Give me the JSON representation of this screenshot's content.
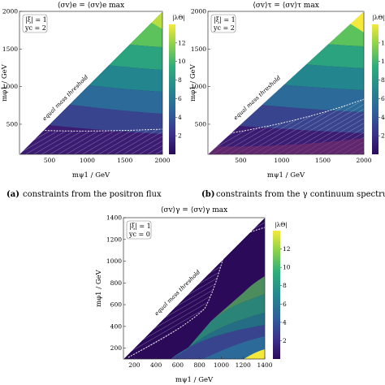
{
  "panels": [
    {
      "title": "⟨σv⟩e = ⟨σv⟩e max",
      "xlabel": "mψ1 / GeV",
      "ylabel": "mφ1 / GeV",
      "legend": [
        "|ξ| = 1",
        "yc = 2"
      ],
      "threshold": "equal mass threshold",
      "colorbar_title": "|λΘ|",
      "colorbar_ticks": [
        "2",
        "4",
        "6",
        "8",
        "10",
        "12"
      ],
      "caption_letter": "(a)",
      "caption": "constraints from the positron flux"
    },
    {
      "title": "⟨σv⟩τ = ⟨σv⟩τ max",
      "xlabel": "mψ1 / GeV",
      "ylabel": "mφ1 / GeV",
      "legend": [
        "|ξ| = 1",
        "yc = 2"
      ],
      "threshold": "equal mass threshold",
      "colorbar_title": "|λΘ|",
      "colorbar_ticks": [
        "2",
        "4",
        "6",
        "8",
        "10",
        "12"
      ],
      "caption_letter": "(b)",
      "caption": "constraints from the γ continuum spectrum"
    },
    {
      "title": "⟨σv⟩γ = ⟨σv⟩γ max",
      "xlabel": "mψ1 / GeV",
      "ylabel": "mφ1 / GeV",
      "legend": [
        "|ξ| = 1",
        "yc = 0"
      ],
      "threshold": "equal mass threshold",
      "colorbar_title": "|λΘ|",
      "colorbar_ticks": [
        "2",
        "4",
        "6",
        "8",
        "10",
        "12"
      ]
    }
  ],
  "chart_data": [
    {
      "type": "heatmap",
      "title": "⟨σv⟩e = ⟨σv⟩e max",
      "xlabel": "mψ1 / GeV",
      "ylabel": "mφ1 / GeV",
      "xlim": [
        100,
        2000
      ],
      "ylim": [
        100,
        2000
      ],
      "x_ticks": [
        500,
        1000,
        1500,
        2000
      ],
      "y_ticks": [
        500,
        1000,
        1500,
        2000
      ],
      "colorbar": {
        "label": "|λΘ|",
        "range": [
          0,
          14
        ],
        "ticks": [
          2,
          4,
          6,
          8,
          10,
          12
        ]
      },
      "region": "mφ1 > mψ1 (above equal mass threshold)",
      "constraint_contour_mphi_at_mpsi": [
        [
          100,
          330
        ],
        [
          500,
          390
        ],
        [
          1000,
          420
        ],
        [
          1500,
          430
        ],
        [
          2000,
          440
        ]
      ],
      "color_levels_mphi_at_mpsi_2000": [
        {
          "value": 2,
          "mphi": 470
        },
        {
          "value": 4,
          "mphi": 780
        },
        {
          "value": 6,
          "mphi": 1080
        },
        {
          "value": 8,
          "mphi": 1390
        },
        {
          "value": 10,
          "mphi": 1690
        },
        {
          "value": 12,
          "mphi": 1930
        }
      ]
    },
    {
      "type": "heatmap",
      "title": "⟨σv⟩τ = ⟨σv⟩τ max",
      "xlabel": "mψ1 / GeV",
      "ylabel": "mφ1 / GeV",
      "xlim": [
        100,
        2000
      ],
      "ylim": [
        100,
        2000
      ],
      "x_ticks": [
        500,
        1000,
        1500,
        2000
      ],
      "y_ticks": [
        500,
        1000,
        1500,
        2000
      ],
      "colorbar": {
        "label": "|λΘ|",
        "range": [
          0,
          14
        ],
        "ticks": [
          2,
          4,
          6,
          8,
          10,
          12
        ]
      },
      "region": "mφ1 > mψ1 (above equal mass threshold)",
      "constraint_contour_mphi_at_mpsi": [
        [
          100,
          250
        ],
        [
          500,
          400
        ],
        [
          1000,
          600
        ],
        [
          1500,
          830
        ],
        [
          2000,
          1050
        ]
      ],
      "color_levels_mphi_at_mpsi_2000": [
        {
          "value": 2,
          "mphi": 440
        },
        {
          "value": 4,
          "mphi": 750
        },
        {
          "value": 6,
          "mphi": 1050
        },
        {
          "value": 8,
          "mphi": 1350
        },
        {
          "value": 10,
          "mphi": 1650
        },
        {
          "value": 12,
          "mphi": 1900
        }
      ]
    },
    {
      "type": "heatmap",
      "title": "⟨σv⟩γ = ⟨σv⟩γ max",
      "xlabel": "mψ1 / GeV",
      "ylabel": "mφ1 / GeV",
      "xlim": [
        100,
        1400
      ],
      "ylim": [
        100,
        1400
      ],
      "x_ticks": [
        200,
        400,
        600,
        800,
        1000,
        1200,
        1400
      ],
      "y_ticks": [
        200,
        400,
        600,
        800,
        1000,
        1200,
        1400
      ],
      "colorbar": {
        "label": "|λΘ|",
        "range": [
          0,
          14
        ],
        "ticks": [
          2,
          4,
          6,
          8,
          10,
          12
        ]
      },
      "region": "mφ1 > mψ1 (above equal mass threshold)",
      "constraint_contour": [
        [
          150,
          110
        ],
        [
          400,
          230
        ],
        [
          700,
          500
        ],
        [
          860,
          830
        ],
        [
          910,
          1050
        ],
        [
          960,
          1200
        ],
        [
          1400,
          1390
        ]
      ],
      "color_levels_mphi_at_mpsi_1400": [
        {
          "value": 2,
          "mphi": 280
        },
        {
          "value": 4,
          "mphi": 420
        },
        {
          "value": 6,
          "mphi": 560
        },
        {
          "value": 8,
          "mphi": 700
        },
        {
          "value": 10,
          "mphi": 900
        },
        {
          "value": 12,
          "mphi": 1150
        }
      ]
    }
  ]
}
